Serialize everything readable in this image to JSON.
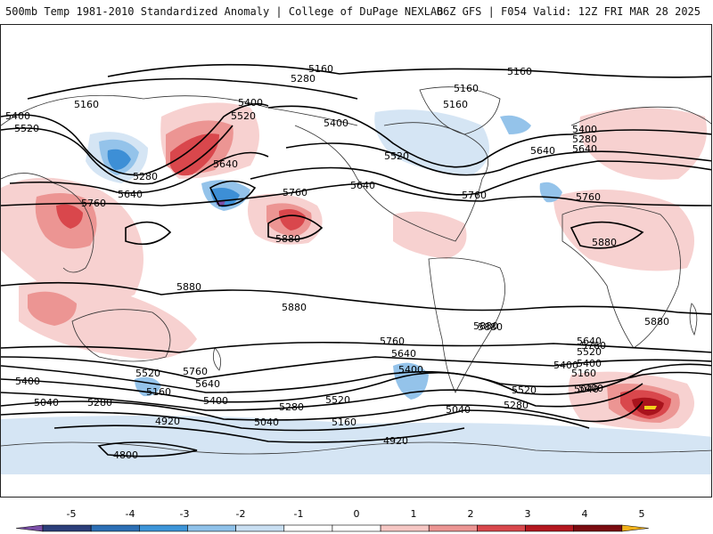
{
  "header": {
    "left": "500mb Temp 1981-2010 Standardized Anomaly | College of DuPage NEXLAB",
    "right": "06Z GFS | F054 Valid: 12Z FRI MAR 28 2025"
  },
  "contour_labels": [
    "5160",
    "5160",
    "5280",
    "5160",
    "5160",
    "5400",
    "5400",
    "5520",
    "5400",
    "5160",
    "5280",
    "5640",
    "5520",
    "5640",
    "5760",
    "5640",
    "5640",
    "5640",
    "5400",
    "5520",
    "5280",
    "5760",
    "5760",
    "5760",
    "5880",
    "5880",
    "5880",
    "5880",
    "5880",
    "5880",
    "5880",
    "5760",
    "5640",
    "5400",
    "5520",
    "5160",
    "5400",
    "5040",
    "5280",
    "5520",
    "5400",
    "5280",
    "5040",
    "5160",
    "5040",
    "5760",
    "5640",
    "5400",
    "5520",
    "5160",
    "5400",
    "5040",
    "5280",
    "4920",
    "4920",
    "4800",
    "5400",
    "5520",
    "5640",
    "5760"
  ],
  "colorbar": {
    "ticks": [
      "-5",
      "-4",
      "-3",
      "-2",
      "-1",
      "0",
      "1",
      "2",
      "3",
      "4",
      "5"
    ],
    "colors": [
      "#7b4fa8",
      "#2c3f7a",
      "#2c6fb5",
      "#3d95d9",
      "#8fc2ea",
      "#c9dff2",
      "#ffffff",
      "#ffffff",
      "#f6c7c4",
      "#ec9593",
      "#d9474c",
      "#b4171f",
      "#7a0b10",
      "#f2b21b"
    ]
  },
  "anomaly_colors": {
    "red_light": "#f7d1d0",
    "red_mid": "#ec9593",
    "red_strong": "#d9474c",
    "red_deep": "#a9131c",
    "blue_light": "#d5e5f4",
    "blue_mid": "#94c3ea",
    "blue_strong": "#3d8fd6",
    "purple": "#7b4fa8",
    "yellow": "#f2d31b"
  }
}
